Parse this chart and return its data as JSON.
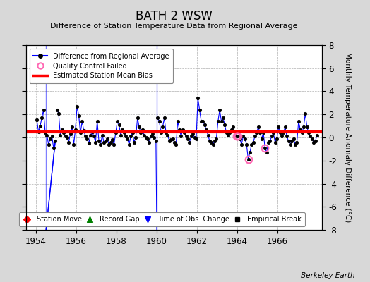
{
  "title": "BATH 2 WSW",
  "subtitle": "Difference of Station Temperature Data from Regional Average",
  "ylabel": "Monthly Temperature Anomaly Difference (°C)",
  "xlabel_years": [
    1954,
    1956,
    1958,
    1960,
    1962,
    1964,
    1966
  ],
  "ylim": [
    -8,
    8
  ],
  "xlim": [
    1953.5,
    1968.2
  ],
  "bias_value": 0.5,
  "line_color": "#0000ff",
  "marker_color": "#000000",
  "bias_color": "#ff0000",
  "qc_color": "#ff69b4",
  "bg_color": "#d8d8d8",
  "plot_bg": "#ffffff",
  "grid_color": "#b0b0b0",
  "watermark": "Berkeley Earth",
  "time_series_seg1": [
    [
      1954.042,
      1.5
    ],
    [
      1954.125,
      0.5
    ],
    [
      1954.208,
      1.0
    ],
    [
      1954.292,
      1.7
    ],
    [
      1954.375,
      2.4
    ],
    [
      1954.458,
      0.4
    ],
    [
      1954.542,
      0.2
    ],
    [
      1954.625,
      -0.6
    ],
    [
      1954.708,
      -0.1
    ],
    [
      1954.792,
      0.1
    ],
    [
      1954.875,
      -0.9
    ],
    [
      1954.958,
      -0.3
    ]
  ],
  "time_series_seg2": [
    [
      1955.042,
      2.4
    ],
    [
      1955.125,
      2.1
    ],
    [
      1955.208,
      0.2
    ],
    [
      1955.292,
      0.7
    ],
    [
      1955.375,
      0.4
    ],
    [
      1955.458,
      0.1
    ],
    [
      1955.542,
      0.0
    ],
    [
      1955.625,
      -0.4
    ],
    [
      1955.708,
      0.3
    ],
    [
      1955.792,
      0.9
    ],
    [
      1955.875,
      -0.6
    ],
    [
      1955.958,
      0.7
    ],
    [
      1956.042,
      2.7
    ],
    [
      1956.125,
      1.9
    ],
    [
      1956.208,
      0.4
    ],
    [
      1956.292,
      1.4
    ],
    [
      1956.375,
      0.6
    ],
    [
      1956.458,
      0.1
    ],
    [
      1956.542,
      -0.1
    ],
    [
      1956.625,
      -0.5
    ],
    [
      1956.708,
      0.2
    ],
    [
      1956.792,
      0.5
    ],
    [
      1956.875,
      0.1
    ],
    [
      1956.958,
      -0.4
    ],
    [
      1957.042,
      1.4
    ],
    [
      1957.125,
      -0.3
    ],
    [
      1957.208,
      -0.6
    ],
    [
      1957.292,
      0.2
    ],
    [
      1957.375,
      -0.4
    ],
    [
      1957.458,
      -0.3
    ],
    [
      1957.542,
      -0.1
    ],
    [
      1957.625,
      -0.6
    ],
    [
      1957.708,
      -0.4
    ],
    [
      1957.792,
      -0.2
    ],
    [
      1957.875,
      -0.6
    ],
    [
      1957.958,
      0.4
    ],
    [
      1958.042,
      1.4
    ],
    [
      1958.125,
      1.1
    ],
    [
      1958.208,
      0.2
    ],
    [
      1958.292,
      0.7
    ],
    [
      1958.375,
      0.4
    ],
    [
      1958.458,
      0.1
    ],
    [
      1958.542,
      -0.1
    ],
    [
      1958.625,
      -0.6
    ],
    [
      1958.708,
      0.1
    ],
    [
      1958.792,
      0.4
    ],
    [
      1958.875,
      -0.4
    ],
    [
      1958.958,
      0.0
    ],
    [
      1959.042,
      1.7
    ],
    [
      1959.125,
      0.9
    ],
    [
      1959.208,
      0.4
    ],
    [
      1959.292,
      0.7
    ],
    [
      1959.375,
      0.2
    ],
    [
      1959.458,
      0.0
    ],
    [
      1959.542,
      -0.1
    ],
    [
      1959.625,
      -0.4
    ],
    [
      1959.708,
      0.1
    ],
    [
      1959.792,
      0.3
    ],
    [
      1959.875,
      0.0
    ],
    [
      1959.958,
      -0.3
    ]
  ],
  "time_series_seg3": [
    [
      1960.042,
      1.7
    ],
    [
      1960.125,
      1.4
    ],
    [
      1960.208,
      0.4
    ],
    [
      1960.292,
      0.9
    ],
    [
      1960.375,
      1.7
    ],
    [
      1960.458,
      0.4
    ],
    [
      1960.542,
      0.2
    ],
    [
      1960.625,
      -0.3
    ],
    [
      1960.708,
      -0.2
    ],
    [
      1960.792,
      -0.1
    ],
    [
      1960.875,
      -0.4
    ],
    [
      1960.958,
      -0.6
    ],
    [
      1961.042,
      1.4
    ],
    [
      1961.125,
      0.7
    ],
    [
      1961.208,
      0.1
    ],
    [
      1961.292,
      0.7
    ],
    [
      1961.375,
      0.4
    ],
    [
      1961.458,
      0.1
    ],
    [
      1961.542,
      -0.1
    ],
    [
      1961.625,
      -0.4
    ],
    [
      1961.708,
      0.1
    ],
    [
      1961.792,
      0.3
    ],
    [
      1961.875,
      0.0
    ],
    [
      1961.958,
      -0.1
    ],
    [
      1962.042,
      3.4
    ],
    [
      1962.125,
      2.4
    ],
    [
      1962.208,
      1.4
    ],
    [
      1962.292,
      1.4
    ],
    [
      1962.375,
      1.1
    ],
    [
      1962.458,
      0.7
    ],
    [
      1962.542,
      0.2
    ],
    [
      1962.625,
      -0.3
    ],
    [
      1962.708,
      -0.4
    ],
    [
      1962.792,
      -0.6
    ],
    [
      1962.875,
      -0.3
    ],
    [
      1962.958,
      -0.1
    ],
    [
      1963.042,
      1.4
    ],
    [
      1963.125,
      2.4
    ],
    [
      1963.208,
      1.4
    ],
    [
      1963.292,
      1.7
    ],
    [
      1963.375,
      1.1
    ],
    [
      1963.458,
      0.4
    ],
    [
      1963.542,
      0.2
    ],
    [
      1963.625,
      0.4
    ],
    [
      1963.708,
      0.7
    ],
    [
      1963.792,
      0.9
    ],
    [
      1963.875,
      0.4
    ],
    [
      1963.958,
      0.1
    ],
    [
      1964.042,
      0.1
    ],
    [
      1964.125,
      -0.1
    ],
    [
      1964.208,
      -0.6
    ],
    [
      1964.292,
      0.1
    ],
    [
      1964.375,
      -0.1
    ],
    [
      1964.458,
      -0.6
    ],
    [
      1964.542,
      -1.9
    ],
    [
      1964.625,
      -1.3
    ],
    [
      1964.708,
      -0.6
    ],
    [
      1964.792,
      -0.4
    ],
    [
      1964.875,
      0.1
    ],
    [
      1964.958,
      0.4
    ],
    [
      1965.042,
      0.9
    ],
    [
      1965.125,
      0.4
    ],
    [
      1965.208,
      -0.1
    ],
    [
      1965.292,
      0.4
    ],
    [
      1965.375,
      -0.9
    ],
    [
      1965.458,
      -1.3
    ],
    [
      1965.542,
      -0.4
    ],
    [
      1965.625,
      -0.3
    ],
    [
      1965.708,
      0.1
    ],
    [
      1965.792,
      0.4
    ],
    [
      1965.875,
      -0.4
    ],
    [
      1965.958,
      -0.1
    ],
    [
      1966.042,
      0.9
    ],
    [
      1966.125,
      0.4
    ],
    [
      1966.208,
      0.1
    ],
    [
      1966.292,
      0.4
    ],
    [
      1966.375,
      0.9
    ],
    [
      1966.458,
      0.1
    ],
    [
      1966.542,
      -0.3
    ],
    [
      1966.625,
      -0.6
    ],
    [
      1966.708,
      -0.3
    ],
    [
      1966.792,
      -0.1
    ],
    [
      1966.875,
      -0.6
    ],
    [
      1966.958,
      -0.4
    ],
    [
      1967.042,
      1.4
    ],
    [
      1967.125,
      0.7
    ],
    [
      1967.208,
      0.4
    ],
    [
      1967.292,
      0.9
    ],
    [
      1967.375,
      2.1
    ],
    [
      1967.458,
      0.9
    ],
    [
      1967.542,
      0.4
    ],
    [
      1967.625,
      0.1
    ],
    [
      1967.708,
      -0.1
    ],
    [
      1967.792,
      -0.4
    ],
    [
      1967.875,
      -0.3
    ],
    [
      1967.958,
      0.2
    ]
  ],
  "gap1_x": 1954.5,
  "gap2_x": 1960.0,
  "qc_failed_points": [
    [
      1963.958,
      0.1
    ],
    [
      1964.042,
      0.1
    ],
    [
      1964.542,
      -1.9
    ],
    [
      1965.375,
      -0.9
    ]
  ]
}
